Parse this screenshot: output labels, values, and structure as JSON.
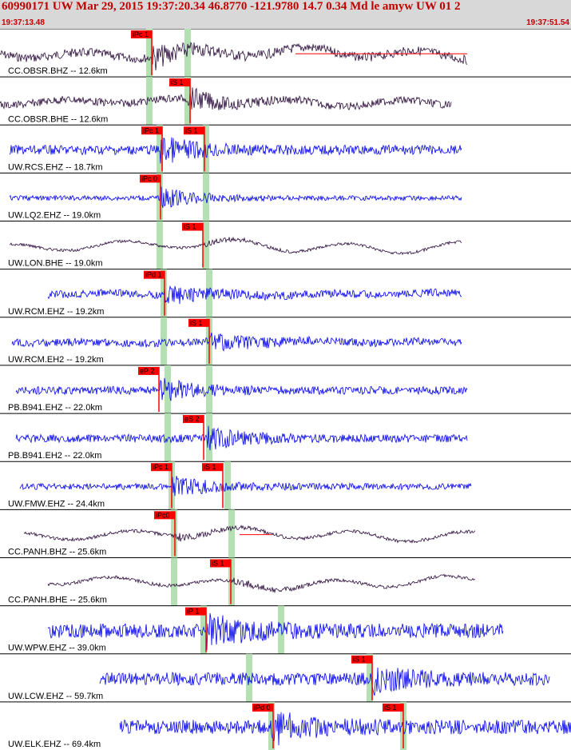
{
  "header": {
    "title": "60990171 UW Mar 29, 2015 19:37:20.34   46.8770 -121.9780 14.7 0.34 Md le amyw UW 01   2",
    "time_start": "19:37:13.48",
    "time_end": "19:37:51.54"
  },
  "colors": {
    "dark_trace": "#2a0a3a",
    "blue_trace": "#0000ee",
    "pick": "#ff0000",
    "band": "#b4e0b4",
    "header_bg": "#d8d8d8",
    "header_text": "#c00000"
  },
  "traces": [
    {
      "label": "CC.OBSR.BHZ -- 12.6km",
      "color": "dark",
      "ext": [
        0,
        585
      ],
      "amp": 10,
      "noise": 0.55,
      "arr": 190,
      "arrAmp": 2.2,
      "bands": [
        187,
        235
      ],
      "picks": [
        {
          "text": "iPc 1",
          "x": 164
        }
      ],
      "redline": [
        370,
        585
      ]
    },
    {
      "label": "CC.OBSR.BHE -- 12.6km",
      "color": "dark",
      "ext": [
        0,
        565
      ],
      "amp": 8,
      "noise": 0.6,
      "arr": 235,
      "arrAmp": 2.2,
      "bands": [
        187,
        235
      ],
      "picks": [
        {
          "text": "iS 1",
          "x": 212
        }
      ],
      "redline": null
    },
    {
      "label": "UW.RCS.EHZ -- 18.7km",
      "color": "blue",
      "ext": [
        12,
        578
      ],
      "amp": 6,
      "noise": 1,
      "arr": 200,
      "arrAmp": 2.4,
      "bands": [
        200,
        258
      ],
      "picks": [
        {
          "text": "iPc 1",
          "x": 177
        },
        {
          "text": "iS 1",
          "x": 230
        }
      ],
      "redline": null
    },
    {
      "label": "UW.LQ2.EHZ -- 19.0km",
      "color": "blue",
      "ext": [
        12,
        578
      ],
      "amp": 3,
      "noise": 1,
      "arr": 200,
      "arrAmp": 4,
      "bands": [
        200,
        258
      ],
      "picks": [
        {
          "text": "iPc 0",
          "x": 175
        }
      ],
      "redline": null
    },
    {
      "label": "UW.LON.BHE -- 19.0km",
      "color": "dark",
      "ext": [
        12,
        578
      ],
      "amp": 7,
      "noise": 0.25,
      "arr": 255,
      "arrAmp": 2,
      "bands": [
        200,
        258
      ],
      "picks": [
        {
          "text": "iS 1",
          "x": 228
        }
      ],
      "redline": null
    },
    {
      "label": "UW.RCM.EHZ -- 19.2km",
      "color": "blue",
      "ext": [
        60,
        578
      ],
      "amp": 6,
      "noise": 0.8,
      "arr": 205,
      "arrAmp": 2.2,
      "bands": [
        205,
        262
      ],
      "picks": [
        {
          "text": "iPd 1",
          "x": 180
        }
      ],
      "redline": null
    },
    {
      "label": "UW.RCM.EH2 -- 19.2km",
      "color": "blue",
      "ext": [
        15,
        578
      ],
      "amp": 6,
      "noise": 0.8,
      "arr": 262,
      "arrAmp": 2.2,
      "bands": [
        205,
        262
      ],
      "picks": [
        {
          "text": "iS 1",
          "x": 236
        }
      ],
      "redline": null
    },
    {
      "label": "PB.B941.EHZ -- 22.0km",
      "color": "blue",
      "ext": [
        20,
        585
      ],
      "amp": 5,
      "noise": 1,
      "arr": 200,
      "arrAmp": 2.5,
      "bands": [
        210,
        262
      ],
      "picks": [
        {
          "text": "eP 2",
          "x": 173
        }
      ],
      "redline": null
    },
    {
      "label": "PB.B941.EH2 -- 22.0km",
      "color": "blue",
      "ext": [
        20,
        585
      ],
      "amp": 5,
      "noise": 1,
      "arr": 258,
      "arrAmp": 2.5,
      "bands": [
        210,
        262
      ],
      "picks": [
        {
          "text": "eS 2",
          "x": 229
        }
      ],
      "redline": null
    },
    {
      "label": "UW.FMW.EHZ -- 24.4km",
      "color": "blue",
      "ext": [
        25,
        590
      ],
      "amp": 4,
      "noise": 1,
      "arr": 215,
      "arrAmp": 3,
      "bands": [
        215,
        285
      ],
      "picks": [
        {
          "text": "iPc 1",
          "x": 189
        },
        {
          "text": "iS 1",
          "x": 253
        }
      ],
      "redline": null
    },
    {
      "label": "CC.PANH.BHZ -- 25.6km",
      "color": "dark",
      "ext": [
        30,
        595
      ],
      "amp": 7,
      "noise": 0.3,
      "arr": 218,
      "arrAmp": 2,
      "bands": [
        218,
        290
      ],
      "picks": [
        {
          "text": "iPc0",
          "x": 193
        }
      ],
      "redline": [
        300,
        340
      ]
    },
    {
      "label": "CC.PANH.BHE -- 25.6km",
      "color": "dark",
      "ext": [
        60,
        595
      ],
      "amp": 7,
      "noise": 0.3,
      "arr": 290,
      "arrAmp": 2,
      "bands": [
        218,
        290
      ],
      "picks": [
        {
          "text": "iS 1",
          "x": 263
        }
      ],
      "redline": null
    },
    {
      "label": "UW.WPW.EHZ -- 39.0km",
      "color": "blue",
      "ext": [
        60,
        630
      ],
      "amp": 9,
      "noise": 1,
      "arr": 258,
      "arrAmp": 2,
      "bands": [
        255,
        352
      ],
      "picks": [
        {
          "text": "iP 1",
          "x": 232
        }
      ],
      "redline": null
    },
    {
      "label": "UW.LCW.EHZ -- 59.7km",
      "color": "blue",
      "ext": [
        125,
        688
      ],
      "amp": 8,
      "noise": 1,
      "arr": 463,
      "arrAmp": 2,
      "bands": [
        312,
        463
      ],
      "picks": [
        {
          "text": "iS 1",
          "x": 440
        }
      ],
      "redline": null
    },
    {
      "label": "UW.ELK.EHZ -- 69.4km",
      "color": "blue",
      "ext": [
        150,
        715
      ],
      "amp": 9,
      "noise": 1,
      "arr": 340,
      "arrAmp": 2,
      "bands": [
        340,
        505
      ],
      "picks": [
        {
          "text": "iPd 0",
          "x": 316
        },
        {
          "text": "iS 1",
          "x": 479
        }
      ],
      "redline": null
    }
  ]
}
